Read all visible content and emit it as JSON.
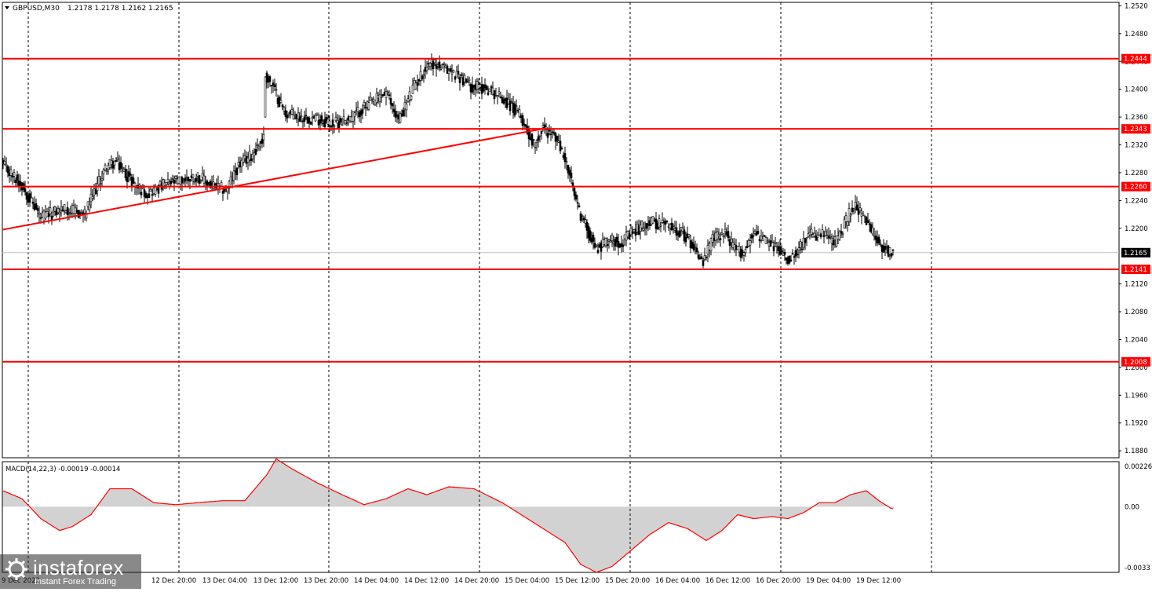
{
  "header": {
    "symbol": "GBPUSD,M30",
    "ohlc": "1.2178 1.2178 1.2162 1.2165"
  },
  "macd": {
    "label": "MACD(14,22,3) -0.00019 -0.00014",
    "axis_labels": [
      "0.00226",
      "0.00",
      "-0.0033"
    ]
  },
  "price_axis": {
    "labels": [
      "1.2520",
      "1.2480",
      "1.2440",
      "1.2400",
      "1.2360",
      "1.2320",
      "1.2280",
      "1.2240",
      "1.2200",
      "1.2120",
      "1.2080",
      "1.2040",
      "1.2000",
      "1.1960",
      "1.1920",
      "1.1880"
    ]
  },
  "time_axis": {
    "labels": [
      "9 Dec 2022",
      "12 Dec 20:00",
      "13 Dec 04:00",
      "13 Dec 12:00",
      "13 Dec 20:00",
      "14 Dec 04:00",
      "14 Dec 12:00",
      "14 Dec 20:00",
      "15 Dec 04:00",
      "15 Dec 12:00",
      "15 Dec 20:00",
      "16 Dec 04:00",
      "16 Dec 12:00",
      "16 Dec 20:00",
      "19 Dec 04:00",
      "19 Dec 12:00"
    ]
  },
  "levels": [
    {
      "price": 1.2444,
      "label": "1.2444"
    },
    {
      "price": 1.2343,
      "label": "1.2343"
    },
    {
      "price": 1.226,
      "label": "1.2260"
    },
    {
      "price": 1.2141,
      "label": "1.2141"
    },
    {
      "price": 1.2008,
      "label": "1.2008"
    }
  ],
  "current_price": {
    "price": 1.2165,
    "label": "1.2165"
  },
  "logo": {
    "name": "instaforex",
    "tagline": "Instant Forex Trading"
  },
  "colors": {
    "level_line": "#ff0000",
    "trendline": "#ff0000",
    "candle": "#000000",
    "candle_bull_fill": "#ffffff",
    "macd_hist": "#b4b4b4",
    "macd_signal": "#ff0000",
    "grid": "#000000",
    "label_bg": "#ff0000",
    "current_bg": "#000000"
  },
  "chart_data": {
    "type": "candlestick",
    "symbol": "GBPUSD",
    "timeframe": "M30",
    "ylim": [
      1.187,
      1.2525
    ],
    "grid": "vertical dashed",
    "series": [
      {
        "name": "price_path",
        "points": [
          [
            0,
            1.229
          ],
          [
            12,
            1.2262
          ],
          [
            24,
            1.2215
          ],
          [
            38,
            1.2228
          ],
          [
            52,
            1.222
          ],
          [
            60,
            1.2262
          ],
          [
            66,
            1.229
          ],
          [
            72,
            1.2295
          ],
          [
            84,
            1.2262
          ],
          [
            92,
            1.225
          ],
          [
            102,
            1.2262
          ],
          [
            116,
            1.227
          ],
          [
            124,
            1.2275
          ],
          [
            132,
            1.2262
          ],
          [
            142,
            1.2255
          ],
          [
            150,
            1.229
          ],
          [
            158,
            1.2305
          ],
          [
            166,
            1.233
          ],
          [
            167,
            1.242
          ],
          [
            172,
            1.2402
          ],
          [
            180,
            1.2365
          ],
          [
            190,
            1.236
          ],
          [
            200,
            1.2358
          ],
          [
            210,
            1.235
          ],
          [
            222,
            1.236
          ],
          [
            234,
            1.238
          ],
          [
            244,
            1.2395
          ],
          [
            252,
            1.2355
          ],
          [
            262,
            1.2405
          ],
          [
            272,
            1.244
          ],
          [
            280,
            1.243
          ],
          [
            290,
            1.242
          ],
          [
            298,
            1.2405
          ],
          [
            310,
            1.24
          ],
          [
            322,
            1.238
          ],
          [
            330,
            1.236
          ],
          [
            338,
            1.232
          ],
          [
            344,
            1.2345
          ],
          [
            352,
            1.233
          ],
          [
            358,
            1.23
          ],
          [
            366,
            1.223
          ],
          [
            372,
            1.22
          ],
          [
            378,
            1.217
          ],
          [
            386,
            1.2185
          ],
          [
            394,
            1.218
          ],
          [
            402,
            1.2195
          ],
          [
            412,
            1.221
          ],
          [
            422,
            1.2205
          ],
          [
            432,
            1.2195
          ],
          [
            440,
            1.2175
          ],
          [
            446,
            1.215
          ],
          [
            452,
            1.2185
          ],
          [
            460,
            1.2195
          ],
          [
            466,
            1.217
          ],
          [
            472,
            1.2165
          ],
          [
            478,
            1.2195
          ],
          [
            486,
            1.218
          ],
          [
            494,
            1.217
          ],
          [
            500,
            1.2155
          ],
          [
            506,
            1.217
          ],
          [
            514,
            1.219
          ],
          [
            522,
            1.219
          ],
          [
            530,
            1.218
          ],
          [
            536,
            1.2205
          ],
          [
            542,
            1.2235
          ],
          [
            548,
            1.2215
          ],
          [
            556,
            1.2185
          ],
          [
            562,
            1.217
          ],
          [
            567,
            1.2165
          ]
        ]
      }
    ],
    "levels": [
      1.2444,
      1.2343,
      1.226,
      1.2141,
      1.2008
    ],
    "trendline": {
      "from": [
        0,
        1.2198
      ],
      "to": [
        344,
        1.2343
      ]
    },
    "macd": {
      "params": "14,22,3",
      "ylim": [
        -0.0033,
        0.00226
      ],
      "series": [
        {
          "name": "histogram",
          "points": [
            [
              0,
              0.0008
            ],
            [
              12,
              0.0004
            ],
            [
              24,
              -0.0006
            ],
            [
              36,
              -0.0012
            ],
            [
              44,
              -0.001
            ],
            [
              56,
              -0.0004
            ],
            [
              68,
              0.0009
            ],
            [
              82,
              0.0009
            ],
            [
              96,
              0.0002
            ],
            [
              110,
              0.0001
            ],
            [
              124,
              0.0002
            ],
            [
              140,
              0.0003
            ],
            [
              154,
              0.0003
            ],
            [
              168,
              0.0016
            ],
            [
              174,
              0.0024
            ],
            [
              184,
              0.0019
            ],
            [
              200,
              0.0012
            ],
            [
              216,
              0.0006
            ],
            [
              230,
              0.0001
            ],
            [
              244,
              0.0004
            ],
            [
              258,
              0.0009
            ],
            [
              270,
              0.0006
            ],
            [
              284,
              0.001
            ],
            [
              300,
              0.0009
            ],
            [
              318,
              0.0002
            ],
            [
              334,
              -0.0006
            ],
            [
              348,
              -0.0013
            ],
            [
              358,
              -0.0018
            ],
            [
              368,
              -0.0029
            ],
            [
              378,
              -0.0033
            ],
            [
              388,
              -0.003
            ],
            [
              400,
              -0.0022
            ],
            [
              412,
              -0.0014
            ],
            [
              424,
              -0.0008
            ],
            [
              436,
              -0.0011
            ],
            [
              448,
              -0.0017
            ],
            [
              458,
              -0.0012
            ],
            [
              468,
              -0.0004
            ],
            [
              478,
              -0.0006
            ],
            [
              490,
              -0.0005
            ],
            [
              500,
              -0.0006
            ],
            [
              510,
              -0.0003
            ],
            [
              520,
              0.0002
            ],
            [
              530,
              0.0002
            ],
            [
              540,
              0.0006
            ],
            [
              550,
              0.0008
            ],
            [
              558,
              0.0003
            ],
            [
              566,
              -0.0001
            ]
          ]
        },
        {
          "name": "signal",
          "points": [
            [
              0,
              0.0008
            ],
            [
              12,
              0.0004
            ],
            [
              24,
              -0.0006
            ],
            [
              36,
              -0.0012
            ],
            [
              44,
              -0.001
            ],
            [
              56,
              -0.0004
            ],
            [
              68,
              0.0009
            ],
            [
              82,
              0.0009
            ],
            [
              96,
              0.0002
            ],
            [
              110,
              0.0001
            ],
            [
              124,
              0.0002
            ],
            [
              140,
              0.0003
            ],
            [
              154,
              0.0003
            ],
            [
              168,
              0.0016
            ],
            [
              174,
              0.0024
            ],
            [
              184,
              0.0019
            ],
            [
              200,
              0.0012
            ],
            [
              216,
              0.0006
            ],
            [
              230,
              0.0001
            ],
            [
              244,
              0.0004
            ],
            [
              258,
              0.0009
            ],
            [
              270,
              0.0006
            ],
            [
              284,
              0.001
            ],
            [
              300,
              0.0009
            ],
            [
              318,
              0.0002
            ],
            [
              334,
              -0.0006
            ],
            [
              348,
              -0.0013
            ],
            [
              358,
              -0.0018
            ],
            [
              368,
              -0.0029
            ],
            [
              378,
              -0.0033
            ],
            [
              388,
              -0.003
            ],
            [
              400,
              -0.0022
            ],
            [
              412,
              -0.0014
            ],
            [
              424,
              -0.0008
            ],
            [
              436,
              -0.0011
            ],
            [
              448,
              -0.0017
            ],
            [
              458,
              -0.0012
            ],
            [
              468,
              -0.0004
            ],
            [
              478,
              -0.0006
            ],
            [
              490,
              -0.0005
            ],
            [
              500,
              -0.0006
            ],
            [
              510,
              -0.0003
            ],
            [
              520,
              0.0002
            ],
            [
              530,
              0.0002
            ],
            [
              540,
              0.0006
            ],
            [
              550,
              0.0008
            ],
            [
              558,
              0.0003
            ],
            [
              566,
              -0.0001
            ]
          ]
        }
      ]
    }
  }
}
